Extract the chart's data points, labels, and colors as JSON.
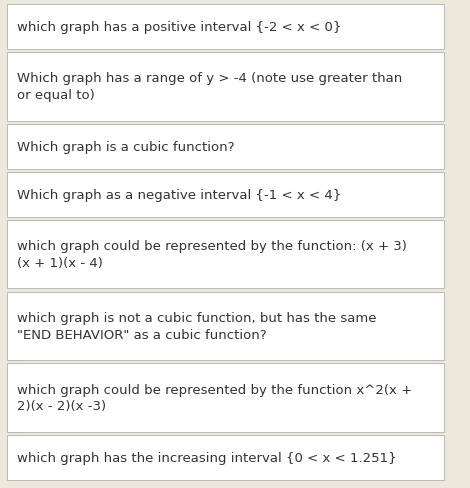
{
  "rows": [
    {
      "text": "which graph has a positive interval {-2 < x < 0}",
      "multiline": false,
      "font_size": 9.5
    },
    {
      "text": "Which graph has a range of y > -4 (note use greater than\nor equal to)",
      "multiline": true,
      "font_size": 9.5
    },
    {
      "text": "Which graph is a cubic function?",
      "multiline": false,
      "font_size": 9.5
    },
    {
      "text": "Which graph as a negative interval {-1 < x < 4}",
      "multiline": false,
      "font_size": 9.5
    },
    {
      "text": "which graph could be represented by the function: (x + 3)\n(x + 1)(x - 4)",
      "multiline": true,
      "font_size": 9.5
    },
    {
      "text": "which graph is not a cubic function, but has the same\n\"END BEHAVIOR\" as a cubic function?",
      "multiline": true,
      "font_size": 9.5
    },
    {
      "text": "which graph could be represented by the function x^2(x +\n2)(x - 2)(x -3)",
      "multiline": true,
      "font_size": 9.5
    },
    {
      "text": "which graph has the increasing interval {0 < x < 1.251}",
      "multiline": false,
      "font_size": 9.5
    }
  ],
  "background_color": "#ede8dc",
  "cell_bg_color": "#ffffff",
  "border_color": "#b0b0b0",
  "text_color": "#333333",
  "fig_width": 4.7,
  "fig_height": 4.89,
  "dpi": 100
}
